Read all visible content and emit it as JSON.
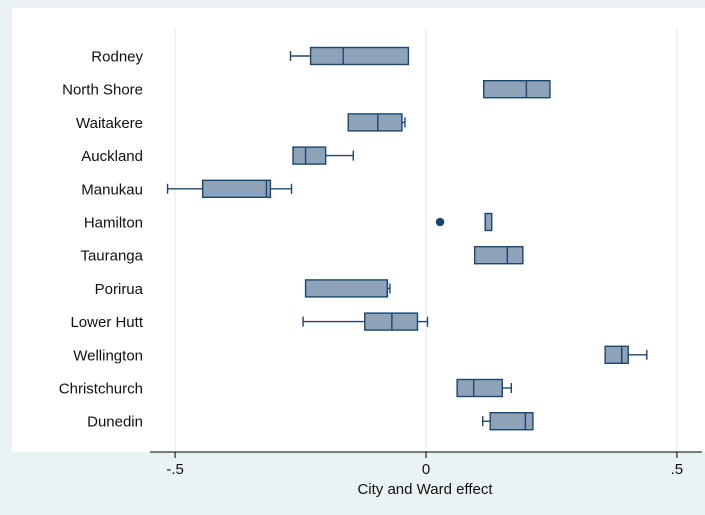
{
  "chart_data": {
    "type": "box",
    "xlabel": "City and Ward effect",
    "xlim": [
      -0.55,
      0.55
    ],
    "xticks": [
      {
        "value": -0.5,
        "label": "-.5"
      },
      {
        "value": 0,
        "label": "0"
      },
      {
        "value": 0.5,
        "label": ".5"
      }
    ],
    "grid": "vertical",
    "colors": {
      "box_fill": "#8fa3b8",
      "stroke": "#1a476f",
      "outlier": "#1a476f"
    },
    "categories": [
      "Rodney",
      "North Shore",
      "Waitakere",
      "Auckland",
      "Manukau",
      "Hamilton",
      "Tauranga",
      "Porirua",
      "Lower Hutt",
      "Wellington",
      "Christchurch",
      "Dunedin"
    ],
    "boxes": [
      {
        "label": "Rodney",
        "whisker_low": -0.27,
        "q1": -0.23,
        "median": -0.165,
        "q3": -0.035,
        "whisker_high": -0.035,
        "outliers": []
      },
      {
        "label": "North Shore",
        "whisker_low": 0.115,
        "q1": 0.115,
        "median": 0.2,
        "q3": 0.247,
        "whisker_high": 0.247,
        "outliers": []
      },
      {
        "label": "Waitakere",
        "whisker_low": -0.155,
        "q1": -0.155,
        "median": -0.096,
        "q3": -0.048,
        "whisker_high": -0.042,
        "outliers": []
      },
      {
        "label": "Auckland",
        "whisker_low": -0.265,
        "q1": -0.265,
        "median": -0.24,
        "q3": -0.2,
        "whisker_high": -0.145,
        "outliers": []
      },
      {
        "label": "Manukau",
        "whisker_low": -0.515,
        "q1": -0.445,
        "median": -0.318,
        "q3": -0.31,
        "whisker_high": -0.268,
        "outliers": []
      },
      {
        "label": "Hamilton",
        "whisker_low": 0.118,
        "q1": 0.118,
        "median": 0.118,
        "q3": 0.131,
        "whisker_high": 0.131,
        "outliers": [
          0.028
        ]
      },
      {
        "label": "Tauranga",
        "whisker_low": 0.097,
        "q1": 0.097,
        "median": 0.162,
        "q3": 0.193,
        "whisker_high": 0.193,
        "outliers": []
      },
      {
        "label": "Porirua",
        "whisker_low": -0.24,
        "q1": -0.24,
        "median": -0.077,
        "q3": -0.077,
        "whisker_high": -0.072,
        "outliers": []
      },
      {
        "label": "Lower Hutt",
        "whisker_low": -0.245,
        "q1": -0.122,
        "median": -0.068,
        "q3": -0.017,
        "whisker_high": 0.003,
        "outliers": []
      },
      {
        "label": "Wellington",
        "whisker_low": 0.357,
        "q1": 0.357,
        "median": 0.39,
        "q3": 0.403,
        "whisker_high": 0.44,
        "outliers": []
      },
      {
        "label": "Christchurch",
        "whisker_low": 0.062,
        "q1": 0.062,
        "median": 0.095,
        "q3": 0.152,
        "whisker_high": 0.17,
        "outliers": []
      },
      {
        "label": "Dunedin",
        "whisker_low": 0.113,
        "q1": 0.128,
        "median": 0.198,
        "q3": 0.213,
        "whisker_high": 0.213,
        "outliers": []
      }
    ]
  }
}
